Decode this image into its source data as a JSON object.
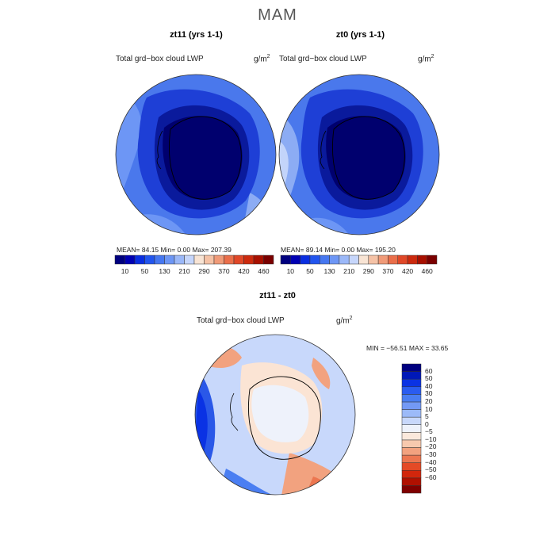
{
  "figure": {
    "title": "MAM"
  },
  "panels": [
    {
      "title": "zt11 (yrs 1-1)",
      "variable": "Total grd−box cloud LWP",
      "units": "g/m",
      "units_exp": "2",
      "stats": "MEAN=  84.15  Min=    0.00  Max= 207.39"
    },
    {
      "title": "zt0 (yrs 1-1)",
      "variable": "Total grd−box cloud LWP",
      "units": "g/m",
      "units_exp": "2",
      "stats": "MEAN=  89.14  Min=    0.00  Max= 195.20"
    },
    {
      "title": "zt11 - zt0",
      "variable": "Total grd−box cloud LWP",
      "units": "g/m",
      "units_exp": "2",
      "stats": "MIN = −56.51 MAX =   33.65"
    }
  ],
  "colorbar_top": {
    "colors": [
      "#00007f",
      "#0000b3",
      "#0a2ee0",
      "#2255ee",
      "#4677f0",
      "#6d96f5",
      "#9bb8f8",
      "#c6d6fb",
      "#f8e4d4",
      "#f5c2a6",
      "#f09a78",
      "#ea6e4a",
      "#e04828",
      "#cc2a0e",
      "#a81000",
      "#7a0000"
    ],
    "labels": [
      "10",
      "50",
      "130",
      "210",
      "290",
      "370",
      "420",
      "460"
    ]
  },
  "colorbar_diff": {
    "colors": [
      "#00007f",
      "#0018b8",
      "#0a32e4",
      "#2a5cf0",
      "#4a7ef2",
      "#7399f5",
      "#9cbaf8",
      "#c8d8fb",
      "#eef2fb",
      "#fbe9dc",
      "#f7c9ae",
      "#f2a27f",
      "#ec7650",
      "#e44a26",
      "#d2260c",
      "#b01000",
      "#7f0000"
    ],
    "labels": [
      "60",
      "50",
      "40",
      "30",
      "20",
      "10",
      "5",
      "0",
      "−5",
      "−10",
      "−20",
      "−30",
      "−40",
      "−50",
      "−60"
    ]
  },
  "map_colors": {
    "antarctica_core": "#00006e",
    "antarctica_mid": "#0a1a9c",
    "ring_blue": "#1e3fd6",
    "ocean_blue": "#4a78ec",
    "ocean_light": "#8cacf4",
    "ocean_pale": "#c3d4fa",
    "diff_neutral": "#fbe4d4",
    "diff_pale": "#e8eef8",
    "diff_red": "#f19a7a",
    "diff_blue": "#2a58e8"
  }
}
